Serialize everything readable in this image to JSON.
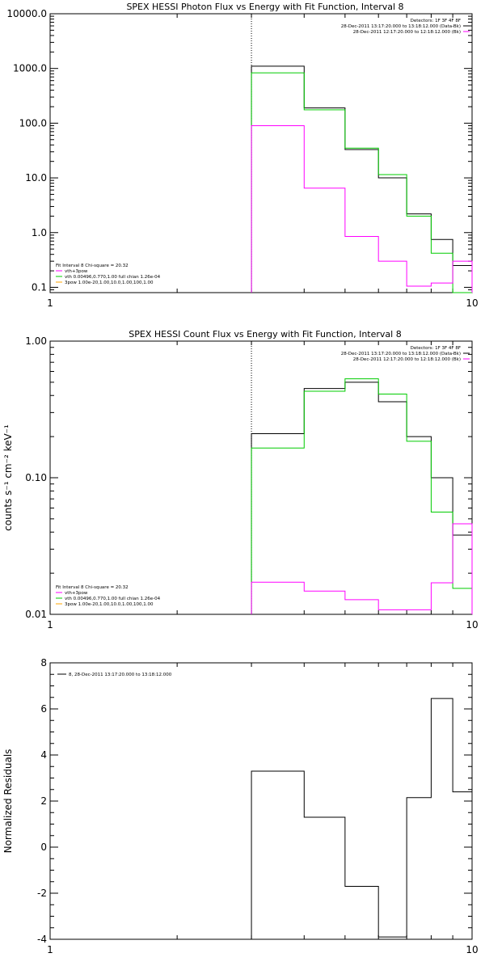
{
  "chart_data": [
    {
      "type": "line",
      "title": "SPEX HESSI Photon Flux vs Energy with Fit Function, Interval 8",
      "ylabel": "",
      "xlabel": "",
      "xscale": "log",
      "yscale": "log",
      "xlim": [
        1,
        10
      ],
      "ylim": [
        0.08,
        10000
      ],
      "xticks": [
        "1",
        "10"
      ],
      "yticks": [
        "0.1",
        "1.0",
        "10.0",
        "100.0",
        "1000.0",
        "10000.0"
      ],
      "ytick_values": [
        0.1,
        1,
        10,
        100,
        1000,
        10000
      ],
      "vline_x": 3,
      "colors": {
        "data": "#000000",
        "total": "#00cc00",
        "component": "#ff00ff",
        "vline": "#000000"
      },
      "legend_right": [
        "Detectors: 1F 3F 4F 8F",
        "28-Dec-2011 13:17:20.000 to 13:18:12.000 (Data-Bk)",
        "28-Dec-2011 12:17:20.000 to 12:18:12.000 (Bk)"
      ],
      "legend_left": [
        "Fit Interval 8   Chi-square = 20.32",
        "vth+3pow",
        "vth 0.00496,0.770,1.00  full chian 1.26e-04",
        "3pow 1.00e-20,1.00,10.0,1.00,100,1.00"
      ],
      "series": [
        {
          "name": "28-Dec-2011 13:17:20.000 to 13:18:12.000 (Data-Bk)",
          "color": "#000000",
          "edges": [
            3,
            4,
            5,
            6,
            7,
            8,
            9,
            10
          ],
          "values": [
            1100,
            190,
            33,
            10,
            2.2,
            0.75,
            0.25
          ]
        },
        {
          "name": "vth+3pow",
          "color": "#00cc00",
          "edges": [
            3,
            4,
            5,
            6,
            7,
            8,
            9,
            10
          ],
          "values": [
            830,
            175,
            35,
            11.5,
            2.0,
            0.42,
            0.08
          ]
        },
        {
          "name": "28-Dec-2011 12:17:20.000 to 12:18:12.000 (Bk)",
          "color": "#ff00ff",
          "edges": [
            3,
            4,
            5,
            6,
            7,
            8,
            9,
            10
          ],
          "values": [
            90,
            6.5,
            0.85,
            0.3,
            0.105,
            0.12,
            0.3
          ]
        }
      ]
    },
    {
      "type": "line",
      "title": "SPEX HESSI Count Flux vs Energy with Fit Function, Interval 8",
      "ylabel": "counts s⁻¹ cm⁻² keV⁻¹",
      "xlabel": "",
      "xscale": "log",
      "yscale": "log",
      "xlim": [
        1,
        10
      ],
      "ylim": [
        0.01,
        1.0
      ],
      "xticks": [
        "1",
        "10"
      ],
      "yticks": [
        "0.01",
        "0.10",
        "1.00"
      ],
      "ytick_values": [
        0.01,
        0.1,
        1.0
      ],
      "vline_x": 3,
      "colors": {
        "data": "#000000",
        "total": "#00cc00",
        "component": "#ff00ff",
        "vline": "#000000"
      },
      "legend_right": [
        "Detectors: 1F 3F 4F 8F",
        "28-Dec-2011 13:17:20.000 to 13:18:12.000 (Data-Bk)",
        "28-Dec-2011 12:17:20.000 to 12:18:12.000 (Bk)"
      ],
      "legend_left": [
        "Fit Interval 8   Chi-square = 20.32",
        "vth+3pow",
        "vth 0.00496,0.770,1.00  full chian 1.26e-04",
        "3pow 1.00e-20,1.00,10.0,1.00,100,1.00"
      ],
      "series": [
        {
          "name": "28-Dec-2011 13:17:20.000 to 13:18:12.000 (Data-Bk)",
          "color": "#000000",
          "edges": [
            3,
            4,
            5,
            6,
            7,
            8,
            9,
            10
          ],
          "values": [
            0.21,
            0.45,
            0.5,
            0.36,
            0.2,
            0.1,
            0.038
          ]
        },
        {
          "name": "vth+3pow",
          "color": "#00cc00",
          "edges": [
            3,
            4,
            5,
            6,
            7,
            8,
            9,
            10
          ],
          "values": [
            0.165,
            0.43,
            0.53,
            0.41,
            0.185,
            0.056,
            0.0155
          ]
        },
        {
          "name": "28-Dec-2011 12:17:20.000 to 12:18:12.000 (Bk)",
          "color": "#ff00ff",
          "edges": [
            3,
            4,
            5,
            6,
            7,
            8,
            9,
            10
          ],
          "values": [
            0.0172,
            0.0148,
            0.0128,
            0.0108,
            0.0108,
            0.017,
            0.046
          ]
        }
      ]
    },
    {
      "type": "line",
      "title": "",
      "ylabel": "Normalized Residuals",
      "xlabel": "",
      "xscale": "log",
      "yscale": "linear",
      "xlim": [
        1,
        10
      ],
      "ylim": [
        -4,
        8
      ],
      "xticks": [
        "1",
        "10"
      ],
      "yticks": [
        "-4",
        "-2",
        "0",
        "2",
        "4",
        "6",
        "8"
      ],
      "ytick_values": [
        -4,
        -2,
        0,
        2,
        4,
        6,
        8
      ],
      "colors": {
        "data": "#000000"
      },
      "legend_left": [
        "8, 28-Dec-2011 13:17:20.000 to 13:18:12.000"
      ],
      "series": [
        {
          "name": "8, 28-Dec-2011 13:17:20.000 to 13:18:12.000",
          "color": "#000000",
          "edges": [
            3,
            4,
            5,
            6,
            7,
            8,
            9,
            10
          ],
          "values": [
            3.3,
            1.3,
            -1.7,
            -3.9,
            2.15,
            6.45,
            2.4
          ]
        }
      ]
    }
  ]
}
